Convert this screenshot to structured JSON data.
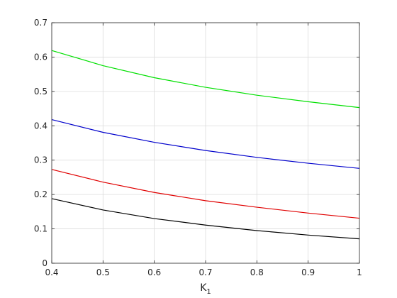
{
  "chart_data": {
    "type": "line",
    "xlabel": "K",
    "xlabel_subscript": "1",
    "ylabel": "",
    "title": "",
    "xlim": [
      0.4,
      1.0
    ],
    "ylim": [
      0,
      0.7
    ],
    "grid": true,
    "x_ticks": [
      "0.4",
      "0.5",
      "0.6",
      "0.7",
      "0.8",
      "0.9",
      "1"
    ],
    "y_ticks": [
      "0",
      "0.1",
      "0.2",
      "0.3",
      "0.4",
      "0.5",
      "0.6",
      "0.7"
    ],
    "x": [
      0.4,
      0.5,
      0.6,
      0.7,
      0.8,
      0.9,
      1.0
    ],
    "series": [
      {
        "color": "#00e000",
        "values": [
          0.619,
          0.575,
          0.54,
          0.512,
          0.489,
          0.47,
          0.453
        ]
      },
      {
        "color": "#0000cc",
        "values": [
          0.418,
          0.381,
          0.352,
          0.328,
          0.308,
          0.291,
          0.276
        ]
      },
      {
        "color": "#e00000",
        "values": [
          0.273,
          0.236,
          0.206,
          0.182,
          0.163,
          0.146,
          0.131
        ]
      },
      {
        "color": "#000000",
        "values": [
          0.188,
          0.155,
          0.13,
          0.111,
          0.095,
          0.082,
          0.071
        ]
      }
    ]
  }
}
